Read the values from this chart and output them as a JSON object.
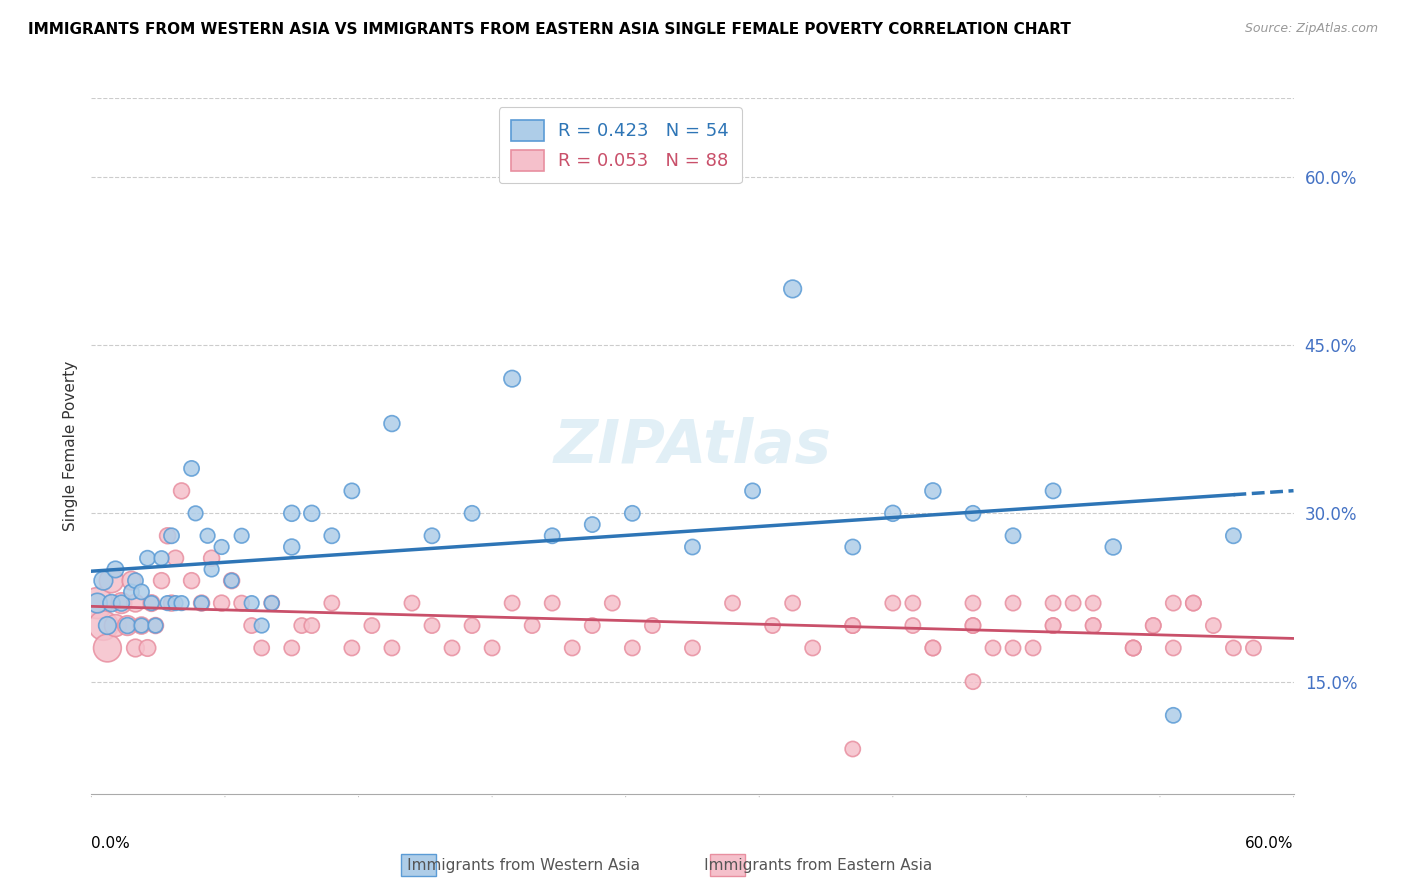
{
  "title": "IMMIGRANTS FROM WESTERN ASIA VS IMMIGRANTS FROM EASTERN ASIA SINGLE FEMALE POVERTY CORRELATION CHART",
  "source": "Source: ZipAtlas.com",
  "ylabel": "Single Female Poverty",
  "yticks": [
    0.15,
    0.3,
    0.45,
    0.6
  ],
  "ytick_labels": [
    "15.0%",
    "30.0%",
    "45.0%",
    "60.0%"
  ],
  "xmin": 0.0,
  "xmax": 0.6,
  "ymin": 0.05,
  "ymax": 0.67,
  "legend1_r": "0.423",
  "legend1_n": "54",
  "legend2_r": "0.053",
  "legend2_n": "88",
  "blue_fill": "#aecde8",
  "blue_edge": "#5b9bd5",
  "pink_fill": "#f5c0cb",
  "pink_edge": "#e88fa0",
  "blue_line_color": "#2e75b6",
  "pink_line_color": "#c9506a",
  "blue_scatter_x": [
    0.003,
    0.006,
    0.008,
    0.01,
    0.012,
    0.015,
    0.018,
    0.02,
    0.022,
    0.025,
    0.025,
    0.028,
    0.03,
    0.032,
    0.035,
    0.038,
    0.04,
    0.042,
    0.045,
    0.05,
    0.052,
    0.055,
    0.058,
    0.06,
    0.065,
    0.07,
    0.075,
    0.08,
    0.085,
    0.09,
    0.1,
    0.1,
    0.11,
    0.12,
    0.13,
    0.15,
    0.17,
    0.19,
    0.21,
    0.23,
    0.25,
    0.27,
    0.3,
    0.33,
    0.35,
    0.38,
    0.4,
    0.42,
    0.44,
    0.46,
    0.48,
    0.51,
    0.54,
    0.57
  ],
  "blue_scatter_y": [
    0.22,
    0.24,
    0.2,
    0.22,
    0.25,
    0.22,
    0.2,
    0.23,
    0.24,
    0.23,
    0.2,
    0.26,
    0.22,
    0.2,
    0.26,
    0.22,
    0.28,
    0.22,
    0.22,
    0.34,
    0.3,
    0.22,
    0.28,
    0.25,
    0.27,
    0.24,
    0.28,
    0.22,
    0.2,
    0.22,
    0.3,
    0.27,
    0.3,
    0.28,
    0.32,
    0.38,
    0.28,
    0.3,
    0.42,
    0.28,
    0.29,
    0.3,
    0.27,
    0.32,
    0.5,
    0.27,
    0.3,
    0.32,
    0.3,
    0.28,
    0.32,
    0.27,
    0.12,
    0.28
  ],
  "blue_scatter_size": [
    200,
    180,
    160,
    150,
    140,
    130,
    130,
    120,
    120,
    120,
    110,
    120,
    110,
    110,
    110,
    110,
    120,
    110,
    110,
    120,
    110,
    110,
    110,
    110,
    110,
    110,
    110,
    110,
    110,
    110,
    130,
    130,
    130,
    120,
    120,
    130,
    120,
    120,
    140,
    120,
    120,
    120,
    120,
    120,
    160,
    120,
    130,
    130,
    120,
    120,
    120,
    130,
    120,
    120
  ],
  "pink_scatter_x": [
    0.003,
    0.006,
    0.008,
    0.01,
    0.012,
    0.015,
    0.018,
    0.02,
    0.022,
    0.022,
    0.025,
    0.028,
    0.03,
    0.032,
    0.035,
    0.038,
    0.04,
    0.042,
    0.045,
    0.05,
    0.055,
    0.06,
    0.065,
    0.07,
    0.075,
    0.08,
    0.085,
    0.09,
    0.1,
    0.105,
    0.11,
    0.12,
    0.13,
    0.14,
    0.15,
    0.16,
    0.17,
    0.18,
    0.19,
    0.2,
    0.21,
    0.22,
    0.23,
    0.24,
    0.25,
    0.26,
    0.27,
    0.28,
    0.3,
    0.32,
    0.34,
    0.36,
    0.38,
    0.4,
    0.42,
    0.44,
    0.46,
    0.48,
    0.5,
    0.52,
    0.54,
    0.56,
    0.58,
    0.38,
    0.41,
    0.44,
    0.47,
    0.5,
    0.53,
    0.44,
    0.48,
    0.52,
    0.55,
    0.38,
    0.42,
    0.46,
    0.5,
    0.54,
    0.44,
    0.48,
    0.52,
    0.55,
    0.41,
    0.45,
    0.49,
    0.53,
    0.57,
    0.35
  ],
  "pink_scatter_y": [
    0.22,
    0.2,
    0.18,
    0.24,
    0.2,
    0.22,
    0.2,
    0.24,
    0.18,
    0.22,
    0.2,
    0.18,
    0.22,
    0.2,
    0.24,
    0.28,
    0.22,
    0.26,
    0.32,
    0.24,
    0.22,
    0.26,
    0.22,
    0.24,
    0.22,
    0.2,
    0.18,
    0.22,
    0.18,
    0.2,
    0.2,
    0.22,
    0.18,
    0.2,
    0.18,
    0.22,
    0.2,
    0.18,
    0.2,
    0.18,
    0.22,
    0.2,
    0.22,
    0.18,
    0.2,
    0.22,
    0.18,
    0.2,
    0.18,
    0.22,
    0.2,
    0.18,
    0.2,
    0.22,
    0.18,
    0.2,
    0.18,
    0.22,
    0.2,
    0.18,
    0.22,
    0.2,
    0.18,
    0.09,
    0.22,
    0.2,
    0.18,
    0.22,
    0.2,
    0.15,
    0.2,
    0.18,
    0.22,
    0.2,
    0.18,
    0.22,
    0.2,
    0.18,
    0.22,
    0.2,
    0.18,
    0.22,
    0.2,
    0.18,
    0.22,
    0.2,
    0.18,
    0.22
  ],
  "pink_scatter_size": [
    500,
    450,
    400,
    300,
    250,
    220,
    200,
    180,
    160,
    160,
    150,
    140,
    140,
    130,
    130,
    130,
    130,
    130,
    130,
    130,
    130,
    130,
    130,
    130,
    120,
    120,
    120,
    120,
    120,
    120,
    120,
    120,
    120,
    120,
    120,
    120,
    120,
    120,
    120,
    120,
    120,
    120,
    120,
    120,
    120,
    120,
    120,
    120,
    120,
    120,
    120,
    120,
    120,
    120,
    120,
    120,
    120,
    120,
    120,
    120,
    120,
    120,
    120,
    120,
    120,
    120,
    120,
    120,
    120,
    120,
    120,
    120,
    120,
    120,
    120,
    120,
    120,
    120,
    120,
    120,
    120,
    120,
    120,
    120,
    120,
    120,
    120,
    120
  ]
}
